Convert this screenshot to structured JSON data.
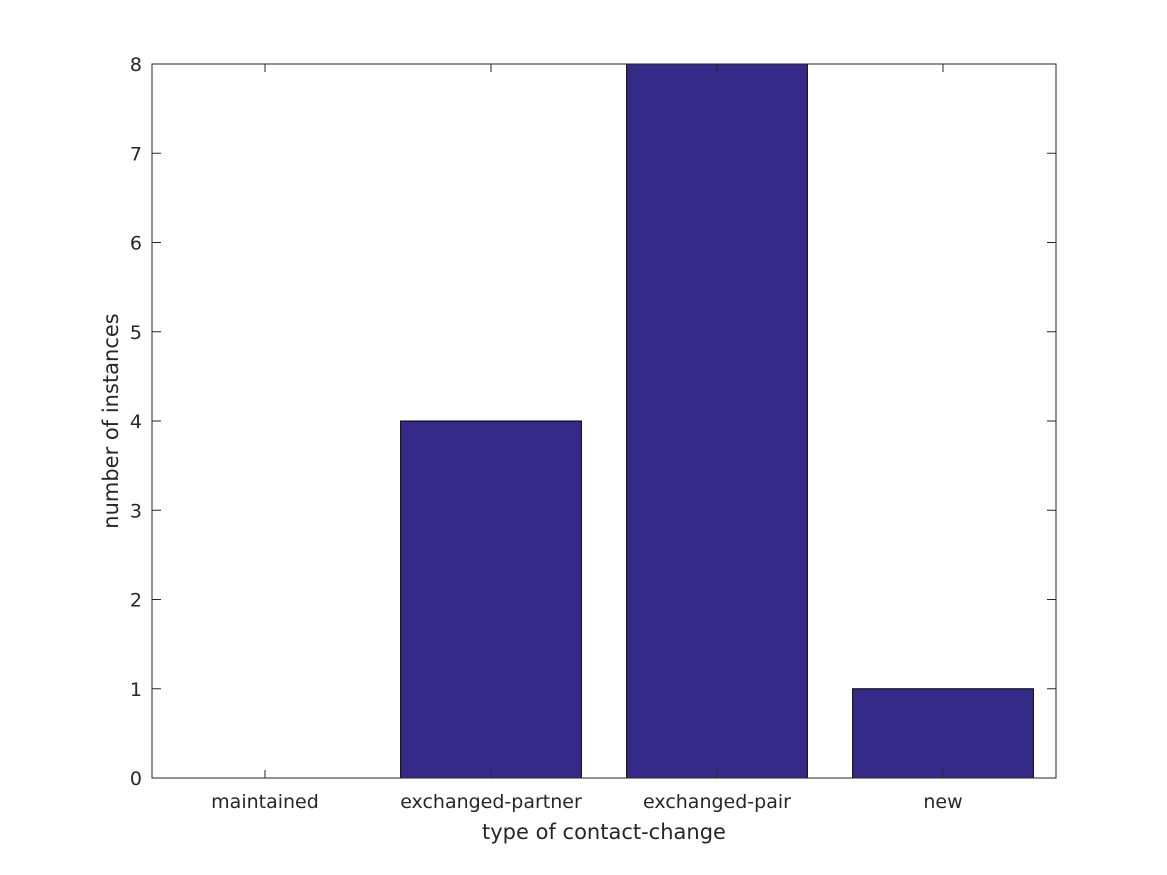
{
  "chart_data": {
    "type": "bar",
    "categories": [
      "maintained",
      "exchanged-partner",
      "exchanged-pair",
      "new"
    ],
    "values": [
      0,
      4,
      8,
      1
    ],
    "xlabel": "type of contact-change",
    "ylabel": "number of instances",
    "ylim": [
      0,
      8
    ],
    "yticks": [
      "0",
      "1",
      "2",
      "3",
      "4",
      "5",
      "6",
      "7",
      "8"
    ],
    "bar_color": "#352a87",
    "grid": false,
    "legend": "none"
  }
}
